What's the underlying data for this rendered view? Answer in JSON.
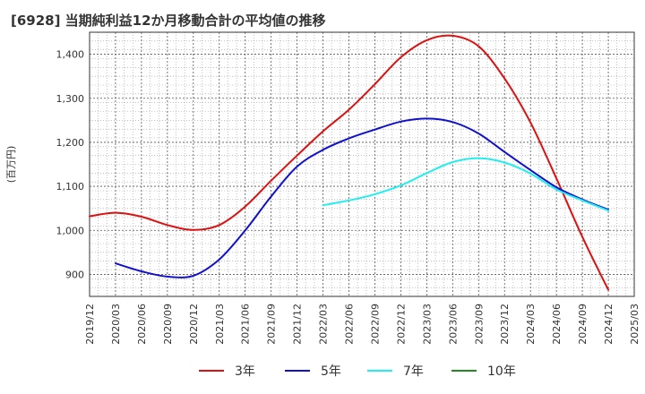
{
  "title": "[6928]  当期純利益12か月移動合計の平均値の推移",
  "chart_data": {
    "type": "line",
    "title": "[6928]  当期純利益12か月移動合計の平均値の推移",
    "ylabel": "(百万円)",
    "xlabel": "",
    "ylim": [
      850,
      1450
    ],
    "yticks": [
      900,
      1000,
      1100,
      1200,
      1300,
      1400
    ],
    "ytick_labels": [
      "900",
      "1,000",
      "1,100",
      "1,200",
      "1,300",
      "1,400"
    ],
    "xticks": [
      "2019/12",
      "2020/03",
      "2020/06",
      "2020/09",
      "2020/12",
      "2021/03",
      "2021/06",
      "2021/09",
      "2021/12",
      "2022/03",
      "2022/06",
      "2022/09",
      "2022/12",
      "2023/03",
      "2023/06",
      "2023/09",
      "2023/12",
      "2024/03",
      "2024/06",
      "2024/09",
      "2024/12",
      "2025/03"
    ],
    "grid": true,
    "legend_position": "bottom",
    "series": [
      {
        "name": "3年",
        "color": "#dd1111",
        "x": [
          "2019/12",
          "2020/03",
          "2020/06",
          "2020/09",
          "2020/12",
          "2021/03",
          "2021/06",
          "2021/09",
          "2021/12",
          "2022/03",
          "2022/06",
          "2022/09",
          "2022/12",
          "2023/03",
          "2023/06",
          "2023/09",
          "2023/12",
          "2024/03",
          "2024/06",
          "2024/09",
          "2024/12"
        ],
        "values": [
          1032,
          1040,
          1031,
          1012,
          1001,
          1012,
          1054,
          1113,
          1170,
          1225,
          1274,
          1332,
          1393,
          1432,
          1442,
          1418,
          1345,
          1245,
          1118,
          985,
          865
        ]
      },
      {
        "name": "5年",
        "color": "#1111cc",
        "x": [
          "2020/03",
          "2020/06",
          "2020/09",
          "2020/12",
          "2021/03",
          "2021/06",
          "2021/09",
          "2021/12",
          "2022/03",
          "2022/06",
          "2022/09",
          "2022/12",
          "2023/03",
          "2023/06",
          "2023/09",
          "2023/12",
          "2024/03",
          "2024/06",
          "2024/09",
          "2024/12"
        ],
        "values": [
          925,
          907,
          895,
          897,
          934,
          1000,
          1077,
          1145,
          1183,
          1209,
          1229,
          1247,
          1254,
          1246,
          1220,
          1178,
          1137,
          1098,
          1070,
          1047
        ]
      },
      {
        "name": "7年",
        "color": "#22eeee",
        "x": [
          "2022/03",
          "2022/06",
          "2022/09",
          "2022/12",
          "2023/03",
          "2023/06",
          "2023/09",
          "2023/12",
          "2024/03",
          "2024/06",
          "2024/09",
          "2024/12"
        ],
        "values": [
          1057,
          1068,
          1082,
          1102,
          1130,
          1155,
          1164,
          1154,
          1129,
          1093,
          1068,
          1045
        ]
      },
      {
        "name": "10年",
        "color": "#228822",
        "x": [],
        "values": []
      }
    ]
  }
}
